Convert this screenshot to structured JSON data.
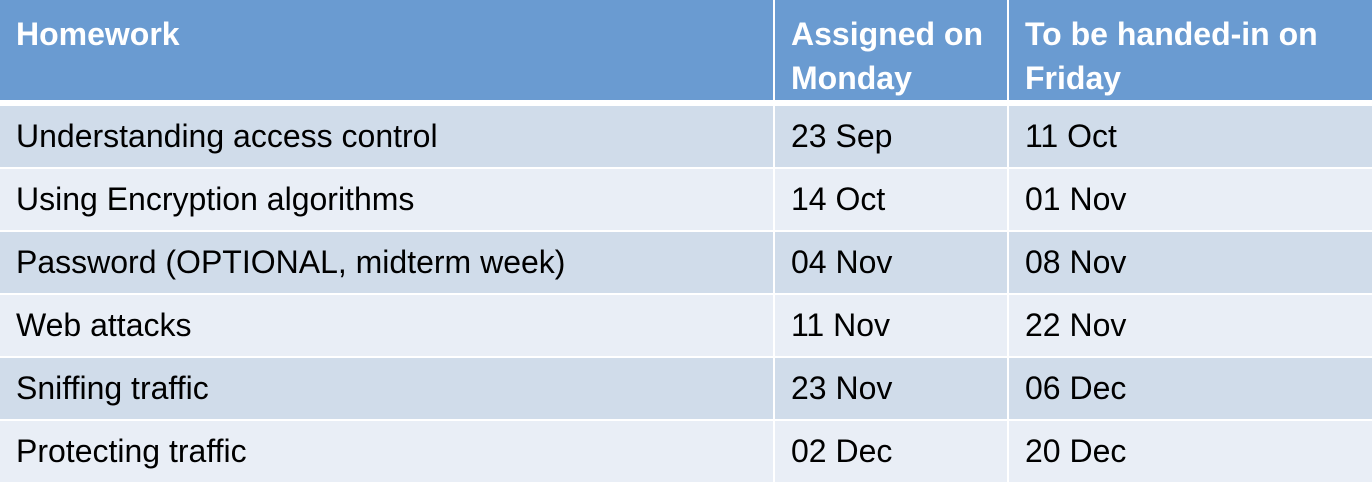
{
  "headers": [
    "Homework",
    "Assigned on Monday",
    "To be handed-in on Friday"
  ],
  "rows": [
    [
      "Understanding access control",
      "23 Sep",
      "11 Oct"
    ],
    [
      "Using Encryption algorithms",
      "14 Oct",
      "01 Nov"
    ],
    [
      "Password (OPTIONAL, midterm week)",
      "04 Nov",
      "08 Nov"
    ],
    [
      "Web attacks",
      "11 Nov",
      "22 Nov"
    ],
    [
      "Sniffing traffic",
      "23 Nov",
      "06 Dec"
    ],
    [
      "Protecting traffic",
      "02 Dec",
      "20 Dec"
    ]
  ],
  "colors": {
    "header": "#6a9bd1",
    "row_odd": "#d0dcea",
    "row_even": "#e9eef6"
  }
}
